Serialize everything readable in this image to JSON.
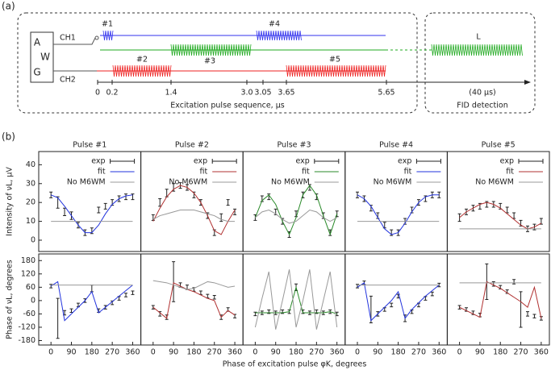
{
  "diagram": {
    "label": "(a)",
    "awg": [
      "A",
      "W",
      "G"
    ],
    "channels": [
      "CH1",
      "CH2"
    ],
    "pulses": [
      "#1",
      "#4",
      "#2",
      "#3",
      "#5"
    ],
    "fid": "L",
    "time_labels": [
      "0",
      "0.2",
      "1.4",
      "3.0",
      "3.05",
      "3.65",
      "5.65"
    ],
    "axis_label": "Excitation pulse sequence, μs",
    "fid_time": "(40 μs)",
    "fid_label": "FID detection"
  },
  "figure": {
    "label": "(b)",
    "xlabel": "Phase of excitation pulse φK, degrees"
  },
  "chart_data": [
    {
      "type": "line",
      "title": "Pulse #1",
      "ylabel": "Intensity of νL, μV",
      "x": [
        0,
        30,
        60,
        90,
        120,
        150,
        180,
        210,
        240,
        270,
        300,
        330,
        360
      ],
      "xlim": [
        -54,
        396
      ],
      "ylim": [
        -6,
        47
      ],
      "yticks": [
        0,
        10,
        20,
        30,
        40
      ],
      "series": [
        {
          "name": "exp",
          "color": "#222222",
          "values": [
            24,
            20,
            15,
            13,
            8,
            4,
            5,
            16,
            18,
            20,
            22,
            23,
            23
          ],
          "errors": [
            1.5,
            3,
            2,
            2,
            1.5,
            1.5,
            1.5,
            1.5,
            1.5,
            1.5,
            1.5,
            1.5,
            1.5
          ]
        },
        {
          "name": "fit",
          "color": "#2233dd",
          "values": [
            24,
            22.5,
            18,
            13,
            8,
            4,
            4,
            8,
            14,
            19,
            22,
            23.5,
            24
          ]
        },
        {
          "name": "No M6WM",
          "color": "#999999",
          "values": [
            10,
            10,
            10,
            10,
            10,
            10,
            10,
            10,
            10,
            10,
            10,
            10,
            10
          ]
        }
      ]
    },
    {
      "type": "line",
      "title": "Pulse #2",
      "x": [
        0,
        30,
        60,
        90,
        120,
        150,
        180,
        210,
        240,
        270,
        300,
        330,
        360
      ],
      "xlim": [
        -54,
        396
      ],
      "ylim": [
        -6,
        47
      ],
      "series": [
        {
          "name": "exp",
          "color": "#222222",
          "values": [
            12,
            20,
            25,
            28,
            29,
            28,
            24,
            20,
            13,
            4,
            12,
            20,
            15
          ],
          "errors": [
            1.5,
            2,
            2,
            2,
            1.5,
            1.5,
            1.5,
            1.5,
            1.5,
            1.5,
            2,
            1.5,
            1.5
          ]
        },
        {
          "name": "fit",
          "color": "#b03030",
          "values": [
            10,
            17,
            23,
            27,
            29,
            28,
            25,
            20,
            13,
            5,
            3,
            10,
            16
          ]
        },
        {
          "name": "No M6WM",
          "color": "#999999",
          "values": [
            11,
            13,
            14,
            15,
            16,
            16,
            16,
            15,
            14,
            13,
            11,
            10,
            10
          ]
        }
      ]
    },
    {
      "type": "line",
      "title": "Pulse #3",
      "x": [
        0,
        30,
        60,
        90,
        120,
        150,
        180,
        210,
        240,
        270,
        300,
        330,
        360
      ],
      "xlim": [
        -54,
        396
      ],
      "ylim": [
        -6,
        47
      ],
      "series": [
        {
          "name": "exp",
          "color": "#222222",
          "values": [
            12,
            22,
            23,
            15,
            10,
            3,
            14,
            24,
            28,
            23,
            13,
            4,
            14
          ],
          "errors": [
            1.5,
            1.5,
            1.5,
            1.5,
            1.5,
            1.5,
            1.5,
            1.5,
            1.5,
            1.5,
            1.5,
            1.5,
            1.5
          ]
        },
        {
          "name": "fit",
          "color": "#2a8a2a",
          "values": [
            12,
            21,
            24,
            19,
            10,
            3,
            12,
            24,
            29,
            24,
            13,
            3,
            14
          ]
        },
        {
          "name": "No M6WM",
          "color": "#999999",
          "values": [
            12,
            15,
            16,
            14,
            11,
            9,
            10,
            13,
            16,
            15,
            12,
            10,
            12
          ]
        }
      ]
    },
    {
      "type": "line",
      "title": "Pulse #4",
      "x": [
        0,
        30,
        60,
        90,
        120,
        150,
        180,
        210,
        240,
        270,
        300,
        330,
        360
      ],
      "xlim": [
        -54,
        396
      ],
      "ylim": [
        -6,
        47
      ],
      "series": [
        {
          "name": "exp",
          "color": "#222222",
          "values": [
            24,
            22,
            17,
            13,
            8,
            4,
            4,
            10,
            16,
            20,
            22,
            24,
            24
          ],
          "errors": [
            1.5,
            1.5,
            1.5,
            1.5,
            1.5,
            1.5,
            1.5,
            1.5,
            1.5,
            1.5,
            1.5,
            1.5,
            1.5
          ]
        },
        {
          "name": "fit",
          "color": "#2233dd",
          "values": [
            24,
            22,
            18,
            12,
            6,
            3,
            4,
            9,
            15,
            20,
            23,
            24,
            24
          ]
        },
        {
          "name": "No M6WM",
          "color": "#999999",
          "values": [
            10,
            10,
            10,
            10,
            10,
            10,
            10,
            10,
            10,
            10,
            10,
            10,
            10
          ]
        }
      ]
    },
    {
      "type": "line",
      "title": "Pulse #5",
      "x": [
        0,
        30,
        60,
        90,
        120,
        150,
        180,
        210,
        240,
        270,
        300,
        330,
        360
      ],
      "xlim": [
        -54,
        396
      ],
      "ylim": [
        -6,
        47
      ],
      "series": [
        {
          "name": "exp",
          "color": "#222222",
          "values": [
            12,
            15,
            17,
            18,
            19,
            19,
            18,
            16,
            13,
            9,
            6,
            7,
            10
          ],
          "errors": [
            2,
            1.5,
            1.5,
            1.5,
            1.5,
            1.5,
            1.5,
            1.5,
            1.5,
            1.5,
            1.5,
            1.5,
            1.5
          ]
        },
        {
          "name": "fit",
          "color": "#b03030",
          "values": [
            12,
            15,
            17,
            19,
            20,
            19,
            17,
            14,
            11,
            8,
            6,
            7,
            9
          ]
        },
        {
          "name": "No M6WM",
          "color": "#999999",
          "values": [
            6,
            6,
            6,
            6,
            6,
            6,
            6,
            6,
            6,
            6,
            6,
            6,
            6
          ]
        }
      ]
    },
    {
      "type": "line",
      "ylabel": "Phase of νL, degrees",
      "x": [
        0,
        30,
        60,
        90,
        120,
        150,
        180,
        210,
        240,
        270,
        300,
        330,
        360
      ],
      "xlim": [
        -54,
        396
      ],
      "xticks": [
        0,
        90,
        180,
        270,
        360
      ],
      "ylim": [
        -200,
        210
      ],
      "yticks": [
        -180,
        -120,
        -60,
        0,
        60,
        120,
        180
      ],
      "series": [
        {
          "color": "#222222",
          "values": [
            65,
            -80,
            -55,
            -45,
            -20,
            0,
            55,
            -45,
            -30,
            -10,
            10,
            25,
            35
          ],
          "errors": [
            8,
            90,
            10,
            8,
            8,
            8,
            15,
            8,
            8,
            8,
            8,
            8,
            8
          ]
        },
        {
          "color": "#2233dd",
          "values": [
            65,
            85,
            -90,
            -60,
            -30,
            0,
            40,
            -55,
            -30,
            -5,
            20,
            45,
            70
          ]
        },
        {
          "color": "#999999",
          "values": [
            70,
            70,
            70,
            70,
            70,
            70,
            70,
            70,
            70,
            70,
            70,
            70,
            70
          ]
        }
      ]
    },
    {
      "type": "line",
      "x": [
        0,
        30,
        60,
        90,
        120,
        150,
        180,
        210,
        240,
        270,
        300,
        330,
        360
      ],
      "xlim": [
        -54,
        396
      ],
      "xticks": [
        0,
        90,
        180,
        270,
        360
      ],
      "ylim": [
        -200,
        210
      ],
      "series": [
        {
          "color": "#222222",
          "values": [
            -30,
            -60,
            -75,
            85,
            70,
            60,
            50,
            35,
            20,
            15,
            -75,
            -40,
            -70
          ],
          "errors": [
            8,
            10,
            10,
            90,
            10,
            10,
            8,
            8,
            8,
            8,
            10,
            8,
            8
          ]
        },
        {
          "color": "#b03030",
          "values": [
            -30,
            -55,
            -80,
            80,
            65,
            50,
            40,
            25,
            10,
            0,
            -75,
            -45,
            -65
          ]
        },
        {
          "color": "#999999",
          "values": [
            90,
            85,
            80,
            70,
            60,
            50,
            55,
            70,
            85,
            80,
            70,
            60,
            65
          ]
        }
      ]
    },
    {
      "type": "line",
      "x": [
        0,
        30,
        60,
        90,
        120,
        150,
        180,
        210,
        240,
        270,
        300,
        330,
        360
      ],
      "xlim": [
        -54,
        396
      ],
      "xticks": [
        0,
        90,
        180,
        270,
        360
      ],
      "ylim": [
        -200,
        210
      ],
      "series": [
        {
          "color": "#222222",
          "values": [
            -60,
            -55,
            -50,
            -55,
            -50,
            -50,
            60,
            -50,
            -55,
            -50,
            -55,
            -50,
            -60
          ],
          "errors": [
            8,
            8,
            8,
            8,
            8,
            8,
            15,
            8,
            8,
            8,
            8,
            8,
            8
          ]
        },
        {
          "color": "#2a8a2a",
          "values": [
            -55,
            -55,
            -55,
            -55,
            -55,
            -50,
            60,
            -55,
            -55,
            -55,
            -55,
            -50,
            -60
          ]
        },
        {
          "color": "#999999",
          "values": [
            -120,
            10,
            130,
            -130,
            0,
            140,
            -120,
            0,
            140,
            -130,
            0,
            130,
            -120
          ]
        }
      ]
    },
    {
      "type": "line",
      "x": [
        0,
        30,
        60,
        90,
        120,
        150,
        180,
        210,
        240,
        270,
        300,
        330,
        360
      ],
      "xlim": [
        -54,
        396
      ],
      "xticks": [
        0,
        90,
        180,
        270,
        360
      ],
      "ylim": [
        -200,
        210
      ],
      "series": [
        {
          "color": "#222222",
          "values": [
            65,
            80,
            -40,
            -60,
            -40,
            -20,
            20,
            -80,
            -50,
            -20,
            10,
            30,
            70
          ],
          "errors": [
            8,
            8,
            60,
            10,
            8,
            8,
            8,
            15,
            8,
            8,
            8,
            8,
            8
          ]
        },
        {
          "color": "#2233dd",
          "values": [
            60,
            80,
            -90,
            -60,
            -30,
            0,
            40,
            -80,
            -40,
            -10,
            20,
            45,
            70
          ]
        },
        {
          "color": "#999999",
          "values": [
            70,
            70,
            70,
            70,
            70,
            70,
            70,
            70,
            70,
            70,
            70,
            70,
            70
          ]
        }
      ]
    },
    {
      "type": "line",
      "x": [
        0,
        30,
        60,
        90,
        120,
        150,
        180,
        210,
        240,
        270,
        300,
        330,
        360
      ],
      "xlim": [
        -54,
        396
      ],
      "xticks": [
        0,
        90,
        180,
        270,
        360
      ],
      "ylim": [
        -200,
        210
      ],
      "series": [
        {
          "color": "#222222",
          "values": [
            -30,
            -40,
            -55,
            -65,
            85,
            75,
            60,
            40,
            85,
            -40,
            -60,
            -70,
            -80
          ],
          "errors": [
            8,
            8,
            8,
            8,
            80,
            10,
            8,
            8,
            10,
            80,
            10,
            8,
            8
          ]
        },
        {
          "color": "#b03030",
          "values": [
            -30,
            -45,
            -60,
            -75,
            85,
            70,
            55,
            35,
            15,
            -5,
            -30,
            60,
            -80
          ]
        },
        {
          "color": "#999999",
          "values": [
            80,
            80,
            80,
            80,
            80,
            80,
            80,
            80,
            80,
            80,
            80,
            80,
            80
          ]
        }
      ]
    }
  ]
}
